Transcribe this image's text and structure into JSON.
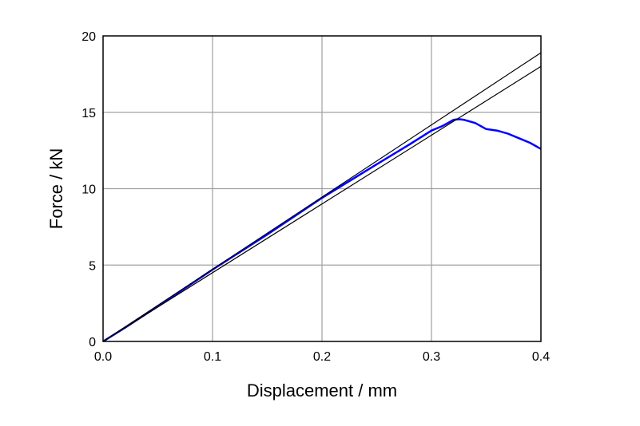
{
  "chart_data": {
    "type": "line",
    "title": "",
    "xlabel": "Displacement / mm",
    "ylabel": "Force / kN",
    "xlim": [
      0.0,
      0.4
    ],
    "ylim": [
      0,
      20
    ],
    "xticks": [
      0.0,
      0.1,
      0.2,
      0.3,
      0.4
    ],
    "xtick_labels": [
      "0.0",
      "0.1",
      "0.2",
      "0.3",
      "0.4"
    ],
    "yticks": [
      0,
      5,
      10,
      15,
      20
    ],
    "ytick_labels": [
      "0",
      "5",
      "10",
      "15",
      "20"
    ],
    "grid": true,
    "legend": "none",
    "series": [
      {
        "color": "#0000ff",
        "points": [
          [
            0.0,
            0.0
          ],
          [
            0.02,
            0.9
          ],
          [
            0.05,
            2.3
          ],
          [
            0.1,
            4.7
          ],
          [
            0.15,
            7.0
          ],
          [
            0.2,
            9.4
          ],
          [
            0.25,
            11.6
          ],
          [
            0.28,
            12.9
          ],
          [
            0.3,
            13.8
          ],
          [
            0.31,
            14.1
          ],
          [
            0.315,
            14.3
          ],
          [
            0.32,
            14.5
          ],
          [
            0.325,
            14.55
          ],
          [
            0.33,
            14.5
          ],
          [
            0.34,
            14.3
          ],
          [
            0.35,
            13.9
          ],
          [
            0.36,
            13.8
          ],
          [
            0.37,
            13.6
          ],
          [
            0.38,
            13.3
          ],
          [
            0.39,
            13.0
          ],
          [
            0.4,
            12.6
          ]
        ]
      },
      {
        "color": "#000000",
        "points": [
          [
            0.0,
            0.0
          ],
          [
            0.4,
            18.9
          ]
        ]
      },
      {
        "color": "#000000",
        "points": [
          [
            0.0,
            0.0
          ],
          [
            0.4,
            18.0
          ]
        ]
      }
    ]
  }
}
